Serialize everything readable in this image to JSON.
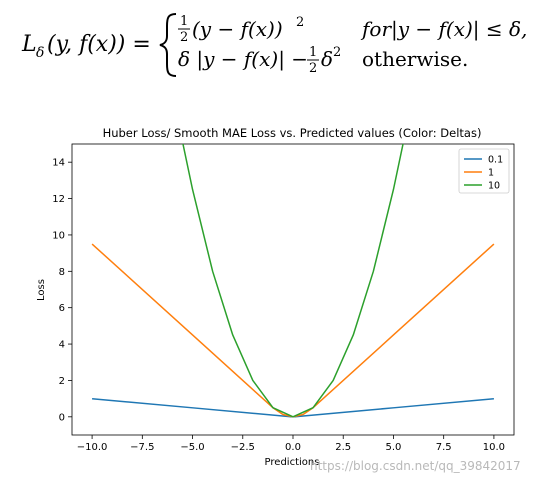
{
  "formula": {
    "lhs_symbol": "L",
    "lhs_sub": "δ",
    "lhs_args": "(y, f(x)) =",
    "case1_expr": "(y − f(x))",
    "case1_cond": "for|y − f(x)| ≤ δ,",
    "case2_expr": "δ |y − f(x)| −",
    "case2_cond": "otherwise.",
    "frac_num": "1",
    "frac_den": "2",
    "power": "2"
  },
  "watermark": "https://blog.csdn.net/qq_39842017",
  "chart_data": {
    "type": "line",
    "title": "Huber Loss/ Smooth MAE Loss vs. Predicted values (Color: Deltas)",
    "xlabel": "Predictions",
    "ylabel": "Loss",
    "xlim": [
      -11,
      11
    ],
    "ylim": [
      -1,
      15
    ],
    "x_ticks": [
      -10.0,
      -7.5,
      -5.0,
      -2.5,
      0.0,
      2.5,
      5.0,
      7.5,
      10.0
    ],
    "x_tick_labels": [
      "−10.0",
      "−7.5",
      "−5.0",
      "−2.5",
      "0.0",
      "2.5",
      "5.0",
      "7.5",
      "10.0"
    ],
    "y_ticks": [
      0,
      2,
      4,
      6,
      8,
      10,
      12,
      14
    ],
    "y_tick_labels": [
      "0",
      "2",
      "4",
      "6",
      "8",
      "10",
      "12",
      "14"
    ],
    "grid": false,
    "legend_position": "top-right",
    "series": [
      {
        "name": "0.1",
        "color": "#1f77b4",
        "x": [
          -10,
          -5,
          -0.1,
          0,
          0.1,
          5,
          10
        ],
        "y": [
          0.995,
          0.495,
          0.005,
          0,
          0.005,
          0.495,
          0.995
        ]
      },
      {
        "name": "1",
        "color": "#ff7f0e",
        "x": [
          -10,
          -5,
          -1,
          -0.5,
          0,
          0.5,
          1,
          5,
          10
        ],
        "y": [
          9.5,
          4.5,
          0.5,
          0.125,
          0,
          0.125,
          0.5,
          4.5,
          9.5
        ]
      },
      {
        "name": "10",
        "color": "#2ca02c",
        "x": [
          -5.5,
          -5,
          -4,
          -3,
          -2,
          -1,
          0,
          1,
          2,
          3,
          4,
          5,
          5.5
        ],
        "y": [
          15.125,
          12.5,
          8,
          4.5,
          2,
          0.5,
          0,
          0.5,
          2,
          4.5,
          8,
          12.5,
          15.125
        ]
      }
    ]
  }
}
